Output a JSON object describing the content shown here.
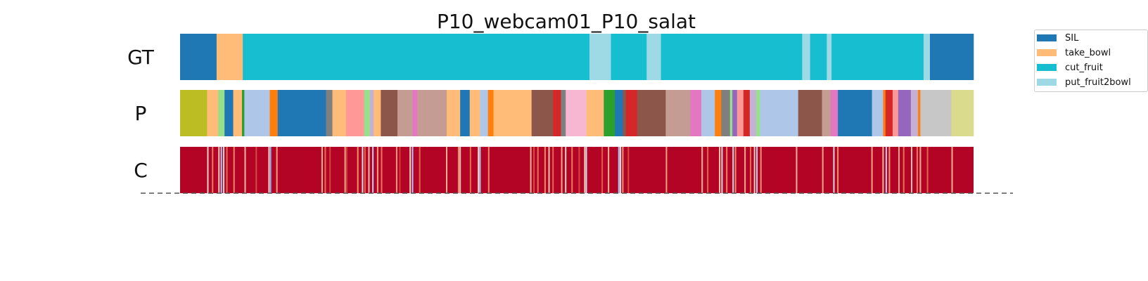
{
  "chart_data": {
    "type": "segmentation",
    "title": "P10_webcam01_P10_salat",
    "rows": [
      {
        "label": "GT",
        "segments": [
          {
            "start": 0.0,
            "end": 4.6,
            "color": "#1f77b4"
          },
          {
            "start": 4.6,
            "end": 7.9,
            "color": "#ffbb78"
          },
          {
            "start": 7.9,
            "end": 51.6,
            "color": "#17becf"
          },
          {
            "start": 51.6,
            "end": 54.3,
            "color": "#9edae5"
          },
          {
            "start": 54.3,
            "end": 58.8,
            "color": "#17becf"
          },
          {
            "start": 58.8,
            "end": 60.6,
            "color": "#9edae5"
          },
          {
            "start": 60.6,
            "end": 78.4,
            "color": "#17becf"
          },
          {
            "start": 78.4,
            "end": 79.4,
            "color": "#9edae5"
          },
          {
            "start": 79.4,
            "end": 81.5,
            "color": "#17becf"
          },
          {
            "start": 81.5,
            "end": 82.1,
            "color": "#9edae5"
          },
          {
            "start": 82.1,
            "end": 93.7,
            "color": "#17becf"
          },
          {
            "start": 93.7,
            "end": 94.5,
            "color": "#9edae5"
          },
          {
            "start": 94.5,
            "end": 100.0,
            "color": "#1f77b4"
          }
        ]
      },
      {
        "label": "P",
        "segments": [
          {
            "start": 0.0,
            "end": 3.4,
            "color": "#bcbd22"
          },
          {
            "start": 3.4,
            "end": 4.8,
            "color": "#ffbb78"
          },
          {
            "start": 4.8,
            "end": 5.6,
            "color": "#98df8a"
          },
          {
            "start": 5.6,
            "end": 6.7,
            "color": "#1f77b4"
          },
          {
            "start": 6.7,
            "end": 7.8,
            "color": "#ffbb78"
          },
          {
            "start": 7.8,
            "end": 8.1,
            "color": "#2ca02c"
          },
          {
            "start": 8.1,
            "end": 11.3,
            "color": "#aec7e8"
          },
          {
            "start": 11.3,
            "end": 12.3,
            "color": "#ff7f0e"
          },
          {
            "start": 12.3,
            "end": 18.4,
            "color": "#1f77b4"
          },
          {
            "start": 18.4,
            "end": 19.2,
            "color": "#7f7f7f"
          },
          {
            "start": 19.2,
            "end": 20.9,
            "color": "#ffbb78"
          },
          {
            "start": 20.9,
            "end": 23.2,
            "color": "#ff9896"
          },
          {
            "start": 23.2,
            "end": 23.9,
            "color": "#98df8a"
          },
          {
            "start": 23.9,
            "end": 24.4,
            "color": "#c5b0d5"
          },
          {
            "start": 24.4,
            "end": 25.3,
            "color": "#ffbb78"
          },
          {
            "start": 25.3,
            "end": 27.4,
            "color": "#8c564b"
          },
          {
            "start": 27.4,
            "end": 29.3,
            "color": "#c49c94"
          },
          {
            "start": 29.3,
            "end": 29.9,
            "color": "#e377c2"
          },
          {
            "start": 29.9,
            "end": 33.6,
            "color": "#c49c94"
          },
          {
            "start": 33.6,
            "end": 35.3,
            "color": "#ffbb78"
          },
          {
            "start": 35.3,
            "end": 36.5,
            "color": "#1f77b4"
          },
          {
            "start": 36.5,
            "end": 37.8,
            "color": "#ffbb78"
          },
          {
            "start": 37.8,
            "end": 38.8,
            "color": "#aec7e8"
          },
          {
            "start": 38.8,
            "end": 39.5,
            "color": "#ff7f0e"
          },
          {
            "start": 39.5,
            "end": 44.3,
            "color": "#ffbb78"
          },
          {
            "start": 44.3,
            "end": 47.0,
            "color": "#8c564b"
          },
          {
            "start": 47.0,
            "end": 48.0,
            "color": "#d62728"
          },
          {
            "start": 48.0,
            "end": 48.6,
            "color": "#7f7f7f"
          },
          {
            "start": 48.6,
            "end": 51.2,
            "color": "#f7b6d2"
          },
          {
            "start": 51.2,
            "end": 53.4,
            "color": "#ffbb78"
          },
          {
            "start": 53.4,
            "end": 54.8,
            "color": "#2ca02c"
          },
          {
            "start": 54.8,
            "end": 55.8,
            "color": "#1f77b4"
          },
          {
            "start": 55.8,
            "end": 56.2,
            "color": "#8c564b"
          },
          {
            "start": 56.2,
            "end": 57.6,
            "color": "#d62728"
          },
          {
            "start": 57.6,
            "end": 61.2,
            "color": "#8c564b"
          },
          {
            "start": 61.2,
            "end": 64.3,
            "color": "#c49c94"
          },
          {
            "start": 64.3,
            "end": 65.7,
            "color": "#e377c2"
          },
          {
            "start": 65.7,
            "end": 67.4,
            "color": "#aec7e8"
          },
          {
            "start": 67.4,
            "end": 68.2,
            "color": "#ff7f0e"
          },
          {
            "start": 68.2,
            "end": 69.3,
            "color": "#7f7f7f"
          },
          {
            "start": 69.3,
            "end": 69.6,
            "color": "#98df8a"
          },
          {
            "start": 69.6,
            "end": 70.2,
            "color": "#9467bd"
          },
          {
            "start": 70.2,
            "end": 71.0,
            "color": "#ff9896"
          },
          {
            "start": 71.0,
            "end": 71.8,
            "color": "#d62728"
          },
          {
            "start": 71.8,
            "end": 72.6,
            "color": "#c5b0d5"
          },
          {
            "start": 72.6,
            "end": 73.1,
            "color": "#98df8a"
          },
          {
            "start": 73.1,
            "end": 77.9,
            "color": "#aec7e8"
          },
          {
            "start": 77.9,
            "end": 80.9,
            "color": "#8c564b"
          },
          {
            "start": 80.9,
            "end": 82.0,
            "color": "#c49c94"
          },
          {
            "start": 82.0,
            "end": 82.9,
            "color": "#e377c2"
          },
          {
            "start": 82.9,
            "end": 87.2,
            "color": "#1f77b4"
          },
          {
            "start": 87.2,
            "end": 88.6,
            "color": "#aec7e8"
          },
          {
            "start": 88.6,
            "end": 88.9,
            "color": "#ff7f0e"
          },
          {
            "start": 88.9,
            "end": 89.8,
            "color": "#d62728"
          },
          {
            "start": 89.8,
            "end": 90.5,
            "color": "#ff9896"
          },
          {
            "start": 90.5,
            "end": 92.1,
            "color": "#9467bd"
          },
          {
            "start": 92.1,
            "end": 93.0,
            "color": "#c5b0d5"
          },
          {
            "start": 93.0,
            "end": 93.3,
            "color": "#ff7f0e"
          },
          {
            "start": 93.3,
            "end": 97.2,
            "color": "#c7c7c7"
          },
          {
            "start": 97.2,
            "end": 100.0,
            "color": "#dbdb8d"
          }
        ]
      },
      {
        "label": "C",
        "base_color": "#b40426",
        "streaks": [
          {
            "pos": 3.5,
            "color": "#f7d5c6"
          },
          {
            "pos": 4.1,
            "color": "#e87d64"
          },
          {
            "pos": 4.9,
            "color": "#f2cbb7"
          },
          {
            "pos": 5.2,
            "color": "#aec9fc"
          },
          {
            "pos": 5.5,
            "color": "#dddcdc"
          },
          {
            "pos": 5.9,
            "color": "#e36b54"
          },
          {
            "pos": 6.8,
            "color": "#ee8669"
          },
          {
            "pos": 8.2,
            "color": "#f7b89c"
          },
          {
            "pos": 9.6,
            "color": "#d24b40"
          },
          {
            "pos": 11.2,
            "color": "#f4c5ad"
          },
          {
            "pos": 11.4,
            "color": "#8db0fe"
          },
          {
            "pos": 12.2,
            "color": "#f5a081"
          },
          {
            "pos": 17.9,
            "color": "#f7b497"
          },
          {
            "pos": 18.3,
            "color": "#e46e56"
          },
          {
            "pos": 18.9,
            "color": "#d0473d"
          },
          {
            "pos": 20.8,
            "color": "#f7a688"
          },
          {
            "pos": 21.0,
            "color": "#cd423b"
          },
          {
            "pos": 22.4,
            "color": "#f29072"
          },
          {
            "pos": 23.0,
            "color": "#dcdddd"
          },
          {
            "pos": 23.3,
            "color": "#e26952"
          },
          {
            "pos": 23.8,
            "color": "#f5c1a9"
          },
          {
            "pos": 24.3,
            "color": "#b9d0f9"
          },
          {
            "pos": 24.9,
            "color": "#f6a385"
          },
          {
            "pos": 25.4,
            "color": "#e8765c"
          },
          {
            "pos": 27.3,
            "color": "#f49a7b"
          },
          {
            "pos": 27.7,
            "color": "#cc403a"
          },
          {
            "pos": 29.0,
            "color": "#edd2c3"
          },
          {
            "pos": 29.3,
            "color": "#aac7fd"
          },
          {
            "pos": 30.2,
            "color": "#e0654f"
          },
          {
            "pos": 33.6,
            "color": "#f7b093"
          },
          {
            "pos": 35.1,
            "color": "#f18d6f"
          },
          {
            "pos": 35.3,
            "color": "#f4c6af"
          },
          {
            "pos": 36.6,
            "color": "#e46e56"
          },
          {
            "pos": 37.6,
            "color": "#ead4c8"
          },
          {
            "pos": 37.8,
            "color": "#b3cdfb"
          },
          {
            "pos": 38.9,
            "color": "#f08b6e"
          },
          {
            "pos": 44.2,
            "color": "#f7b497"
          },
          {
            "pos": 44.6,
            "color": "#d55042"
          },
          {
            "pos": 45.1,
            "color": "#e67259"
          },
          {
            "pos": 46.0,
            "color": "#f08a6c"
          },
          {
            "pos": 46.5,
            "color": "#f4c5ad"
          },
          {
            "pos": 47.0,
            "color": "#e26952"
          },
          {
            "pos": 48.1,
            "color": "#f7a98b"
          },
          {
            "pos": 48.6,
            "color": "#ecd3c5"
          },
          {
            "pos": 49.4,
            "color": "#ea7b60"
          },
          {
            "pos": 50.3,
            "color": "#d1493f"
          },
          {
            "pos": 51.0,
            "color": "#f5c0a7"
          },
          {
            "pos": 51.2,
            "color": "#c4d5f3"
          },
          {
            "pos": 53.2,
            "color": "#dd5f4b"
          },
          {
            "pos": 54.0,
            "color": "#f7b396"
          },
          {
            "pos": 55.3,
            "color": "#aac7fd"
          },
          {
            "pos": 55.5,
            "color": "#dedcdb"
          },
          {
            "pos": 55.8,
            "color": "#f39475"
          },
          {
            "pos": 56.5,
            "color": "#d44e41"
          },
          {
            "pos": 61.3,
            "color": "#f6a385"
          },
          {
            "pos": 65.8,
            "color": "#f7b89c"
          },
          {
            "pos": 66.5,
            "color": "#e16751"
          },
          {
            "pos": 68.0,
            "color": "#f5c1a9"
          },
          {
            "pos": 68.3,
            "color": "#dddcdc"
          },
          {
            "pos": 68.9,
            "color": "#ee8468"
          },
          {
            "pos": 69.7,
            "color": "#cdd9ec"
          },
          {
            "pos": 70.0,
            "color": "#f08b6e"
          },
          {
            "pos": 71.2,
            "color": "#f7ad90"
          },
          {
            "pos": 71.9,
            "color": "#e46e56"
          },
          {
            "pos": 72.4,
            "color": "#f2cbb7"
          },
          {
            "pos": 72.7,
            "color": "#c0d4f5"
          },
          {
            "pos": 73.2,
            "color": "#f29274"
          },
          {
            "pos": 77.7,
            "color": "#f7b497"
          },
          {
            "pos": 81.0,
            "color": "#f7a688"
          },
          {
            "pos": 82.4,
            "color": "#d6dce4"
          },
          {
            "pos": 82.9,
            "color": "#f18f71"
          },
          {
            "pos": 87.2,
            "color": "#f6a586"
          },
          {
            "pos": 88.6,
            "color": "#f7b89c"
          },
          {
            "pos": 89.0,
            "color": "#b9d0f9"
          },
          {
            "pos": 89.4,
            "color": "#f39577"
          },
          {
            "pos": 90.6,
            "color": "#f7a98b"
          },
          {
            "pos": 91.2,
            "color": "#e67259"
          },
          {
            "pos": 92.2,
            "color": "#f5c4ac"
          },
          {
            "pos": 92.9,
            "color": "#ea7b60"
          },
          {
            "pos": 93.3,
            "color": "#f7ad90"
          },
          {
            "pos": 94.2,
            "color": "#e16751"
          },
          {
            "pos": 97.3,
            "color": "#f7b093"
          }
        ]
      }
    ],
    "legend": {
      "position": "top-right",
      "entries": [
        {
          "label": "SIL",
          "color": "#1f77b4"
        },
        {
          "label": "take_bowl",
          "color": "#ffbb78"
        },
        {
          "label": "cut_fruit",
          "color": "#17becf"
        },
        {
          "label": "put_fruit2bowl",
          "color": "#9edae5"
        }
      ]
    }
  }
}
